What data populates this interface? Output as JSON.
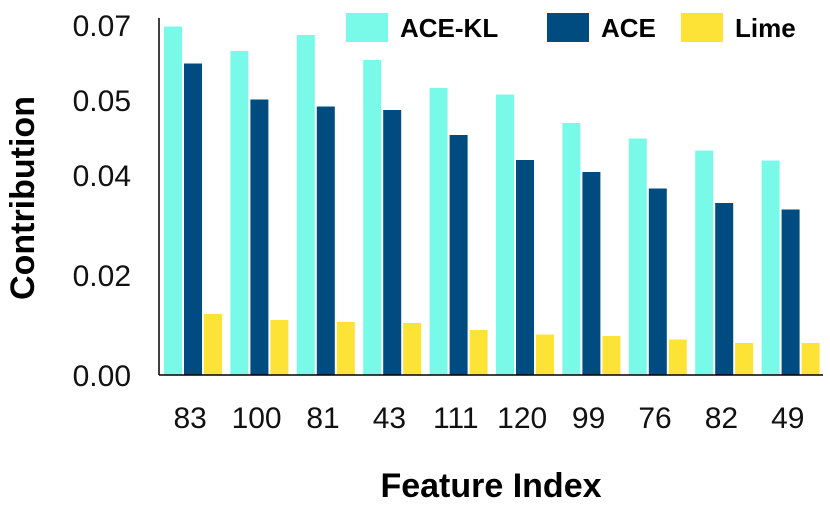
{
  "chart_data": {
    "type": "bar",
    "title": "",
    "xlabel": "Feature Index",
    "ylabel": "Contribution",
    "ylim": [
      0,
      0.075
    ],
    "yticks": [
      0,
      0.02,
      0.04,
      0.055,
      0.07
    ],
    "ytick_labels": [
      "0.00",
      "0.02",
      "0.04",
      "0.05",
      "0.07"
    ],
    "categories": [
      "83",
      "100",
      "81",
      "43",
      "111",
      "120",
      "99",
      "76",
      "82",
      "49"
    ],
    "series": [
      {
        "name": "ACE-KL",
        "color": "#79f9e8",
        "values": [
          0.0697,
          0.0648,
          0.068,
          0.063,
          0.0574,
          0.0561,
          0.0504,
          0.0473,
          0.0449,
          0.0429
        ]
      },
      {
        "name": "ACE",
        "color": "#004c81",
        "values": [
          0.0623,
          0.0551,
          0.0537,
          0.053,
          0.048,
          0.043,
          0.0406,
          0.0373,
          0.0344,
          0.0331
        ]
      },
      {
        "name": "Lime",
        "color": "#fce335",
        "values": [
          0.0122,
          0.011,
          0.0106,
          0.0104,
          0.009,
          0.0081,
          0.0078,
          0.0071,
          0.0064,
          0.0064
        ]
      }
    ],
    "legend": "top-right",
    "grid": false
  }
}
